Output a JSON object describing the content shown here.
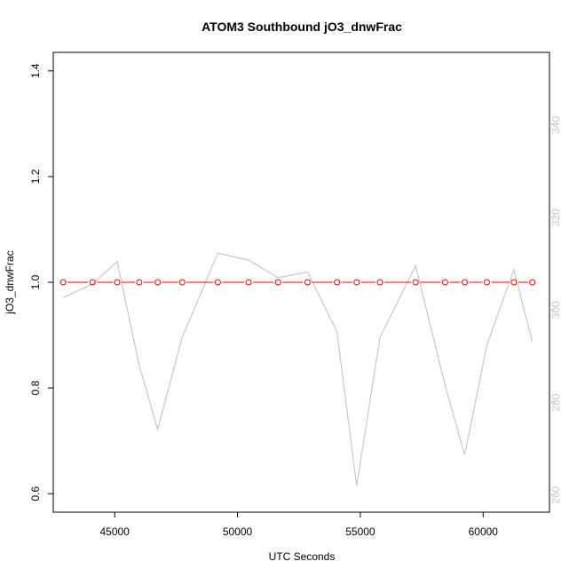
{
  "chart_data": {
    "type": "line",
    "title": "ATOM3 Southbound jO3_dnwFrac",
    "xlabel": "UTC Seconds",
    "ylabel": "jO3_dnwFrac",
    "xlim": [
      42500,
      62700
    ],
    "ylim": [
      0.565,
      1.435
    ],
    "ylim_right": [
      256.3,
      355.7
    ],
    "x_ticks": [
      45000,
      50000,
      55000,
      60000
    ],
    "y_ticks": [
      0.6,
      0.8,
      1.0,
      1.2,
      1.4
    ],
    "y_tick_labels": [
      "0.6",
      "0.8",
      "1.0",
      "1.2",
      "1.4"
    ],
    "y_ticks_right": [
      260,
      280,
      300,
      320,
      340
    ],
    "grid": false,
    "colors": {
      "primary": "#ff0000",
      "secondary": "#c8c8c8",
      "axis": "#000000"
    },
    "series": [
      {
        "axis": "left",
        "style": "line-with-circles",
        "x": [
          42900,
          44100,
          45100,
          46000,
          46750,
          47750,
          49200,
          50450,
          51650,
          52850,
          54050,
          54850,
          55800,
          57250,
          58450,
          59250,
          60150,
          61250,
          62000
        ],
        "y": [
          1.0,
          1.0,
          1.0,
          1.0,
          1.0,
          1.0,
          1.0,
          1.0,
          1.0,
          1.0,
          1.0,
          1.0,
          1.0,
          1.0,
          1.0,
          1.0,
          1.0,
          1.0,
          1.0
        ]
      },
      {
        "axis": "right",
        "style": "line",
        "x": [
          42900,
          44100,
          45100,
          46000,
          46750,
          47750,
          49200,
          50450,
          51650,
          52850,
          54050,
          54850,
          55800,
          57250,
          58450,
          59250,
          60150,
          61250,
          62000
        ],
        "y": [
          302.7,
          305.6,
          310.5,
          288.0,
          274.2,
          294.1,
          312.3,
          310.8,
          307.0,
          308.2,
          295.3,
          262.0,
          294.1,
          309.6,
          283.7,
          268.7,
          292.4,
          308.7,
          293.2
        ]
      }
    ]
  }
}
